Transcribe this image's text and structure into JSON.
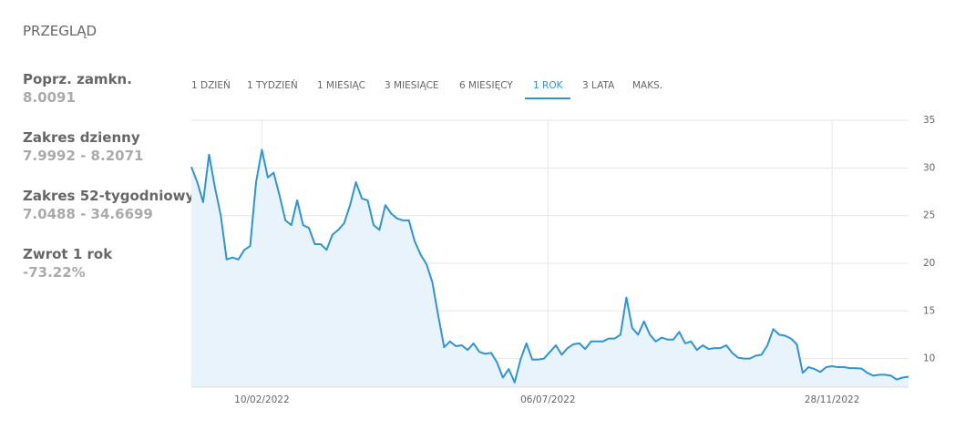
{
  "header": {
    "title": "PRZEGLĄD"
  },
  "stats": [
    {
      "label": "Poprz. zamkn.",
      "value": "8.0091"
    },
    {
      "label": "Zakres dzienny",
      "value": "7.9992 - 8.2071"
    },
    {
      "label": "Zakres 52-tygodniowy",
      "value": "7.0488 - 34.6699"
    },
    {
      "label": "Zwrot 1 rok",
      "value": "-73.22%"
    }
  ],
  "tabs": {
    "items": [
      "1 DZIEŃ",
      "1 TYDZIEŃ",
      "1 MIESIĄC",
      "3 MIESIĄCE",
      "6 MIESIĘCY",
      "1 ROK",
      "3 LATA",
      "MAKS."
    ],
    "active": 5
  },
  "chart_data": {
    "type": "area",
    "color": "#2e95d3",
    "fill": "#e8f3fb",
    "grid": true,
    "xlim": [
      "05/01/2022",
      "06/01/2023"
    ],
    "xticks": [
      "10/02/2022",
      "06/07/2022",
      "28/11/2022"
    ],
    "ylim": [
      7,
      35
    ],
    "yticks": [
      10,
      15,
      20,
      25,
      30,
      35
    ],
    "x": [
      "05/01/2022",
      "08/01/2022",
      "11/01/2022",
      "14/01/2022",
      "17/01/2022",
      "20/01/2022",
      "23/01/2022",
      "26/01/2022",
      "29/01/2022",
      "01/02/2022",
      "04/02/2022",
      "07/02/2022",
      "10/02/2022",
      "13/02/2022",
      "16/02/2022",
      "19/02/2022",
      "22/02/2022",
      "25/02/2022",
      "28/02/2022",
      "03/03/2022",
      "06/03/2022",
      "09/03/2022",
      "12/03/2022",
      "15/03/2022",
      "18/03/2022",
      "21/03/2022",
      "24/03/2022",
      "27/03/2022",
      "30/03/2022",
      "02/04/2022",
      "05/04/2022",
      "08/04/2022",
      "11/04/2022",
      "14/04/2022",
      "17/04/2022",
      "20/04/2022",
      "23/04/2022",
      "26/04/2022",
      "29/04/2022",
      "02/05/2022",
      "05/05/2022",
      "08/05/2022",
      "11/05/2022",
      "14/05/2022",
      "17/05/2022",
      "20/05/2022",
      "23/05/2022",
      "26/05/2022",
      "29/05/2022",
      "01/06/2022",
      "04/06/2022",
      "07/06/2022",
      "10/06/2022",
      "13/06/2022",
      "16/06/2022",
      "19/06/2022",
      "22/06/2022",
      "25/06/2022",
      "28/06/2022",
      "01/07/2022",
      "04/07/2022",
      "07/07/2022",
      "10/07/2022",
      "13/07/2022",
      "16/07/2022",
      "19/07/2022",
      "22/07/2022",
      "25/07/2022",
      "28/07/2022",
      "31/07/2022",
      "03/08/2022",
      "06/08/2022",
      "09/08/2022",
      "12/08/2022",
      "15/08/2022",
      "18/08/2022",
      "21/08/2022",
      "24/08/2022",
      "27/08/2022",
      "30/08/2022",
      "02/09/2022",
      "05/09/2022",
      "08/09/2022",
      "11/09/2022",
      "14/09/2022",
      "17/09/2022",
      "20/09/2022",
      "23/09/2022",
      "26/09/2022",
      "29/09/2022",
      "02/10/2022",
      "05/10/2022",
      "08/10/2022",
      "11/10/2022",
      "14/10/2022",
      "17/10/2022",
      "20/10/2022",
      "23/10/2022",
      "26/10/2022",
      "29/10/2022",
      "01/11/2022",
      "04/11/2022",
      "07/11/2022",
      "10/11/2022",
      "13/11/2022",
      "16/11/2022",
      "19/11/2022",
      "22/11/2022",
      "25/11/2022",
      "28/11/2022",
      "01/12/2022",
      "04/12/2022",
      "07/12/2022",
      "10/12/2022",
      "13/12/2022",
      "16/12/2022",
      "19/12/2022",
      "22/12/2022",
      "25/12/2022",
      "28/12/2022",
      "31/12/2022",
      "03/01/2023",
      "06/01/2023"
    ],
    "values": [
      30.1,
      28.5,
      26.4,
      31.4,
      28.0,
      25.0,
      20.4,
      20.6,
      20.4,
      21.4,
      21.8,
      28.5,
      31.9,
      29.0,
      29.5,
      27.1,
      24.5,
      24.0,
      26.6,
      24.0,
      23.7,
      22.0,
      22.0,
      21.4,
      23.0,
      23.5,
      24.2,
      26.1,
      28.5,
      26.8,
      26.6,
      24.0,
      23.5,
      26.1,
      25.2,
      24.7,
      24.5,
      24.5,
      22.3,
      20.9,
      19.9,
      18.0,
      14.5,
      11.2,
      11.8,
      11.3,
      11.4,
      10.9,
      11.6,
      10.7,
      10.5,
      10.6,
      9.6,
      8.0,
      8.9,
      7.5,
      9.9,
      11.6,
      9.9,
      9.9,
      10.0,
      10.7,
      11.4,
      10.4,
      11.1,
      11.5,
      11.6,
      11.0,
      11.8,
      11.8,
      11.8,
      12.1,
      12.1,
      12.5,
      16.4,
      13.2,
      12.5,
      13.9,
      12.5,
      11.8,
      12.2,
      12.0,
      12.0,
      12.8,
      11.6,
      11.8,
      10.9,
      11.4,
      11.0,
      11.1,
      11.1,
      11.4,
      10.6,
      10.1,
      10.0,
      10.0,
      10.3,
      10.4,
      11.4,
      13.1,
      12.5,
      12.4,
      12.1,
      11.5,
      8.5,
      9.1,
      8.9,
      8.6,
      9.1,
      9.2,
      9.1,
      9.1,
      9.0,
      9.0,
      8.95,
      8.5,
      8.2,
      8.3,
      8.3,
      8.2,
      7.8,
      8.0,
      8.1
    ]
  }
}
